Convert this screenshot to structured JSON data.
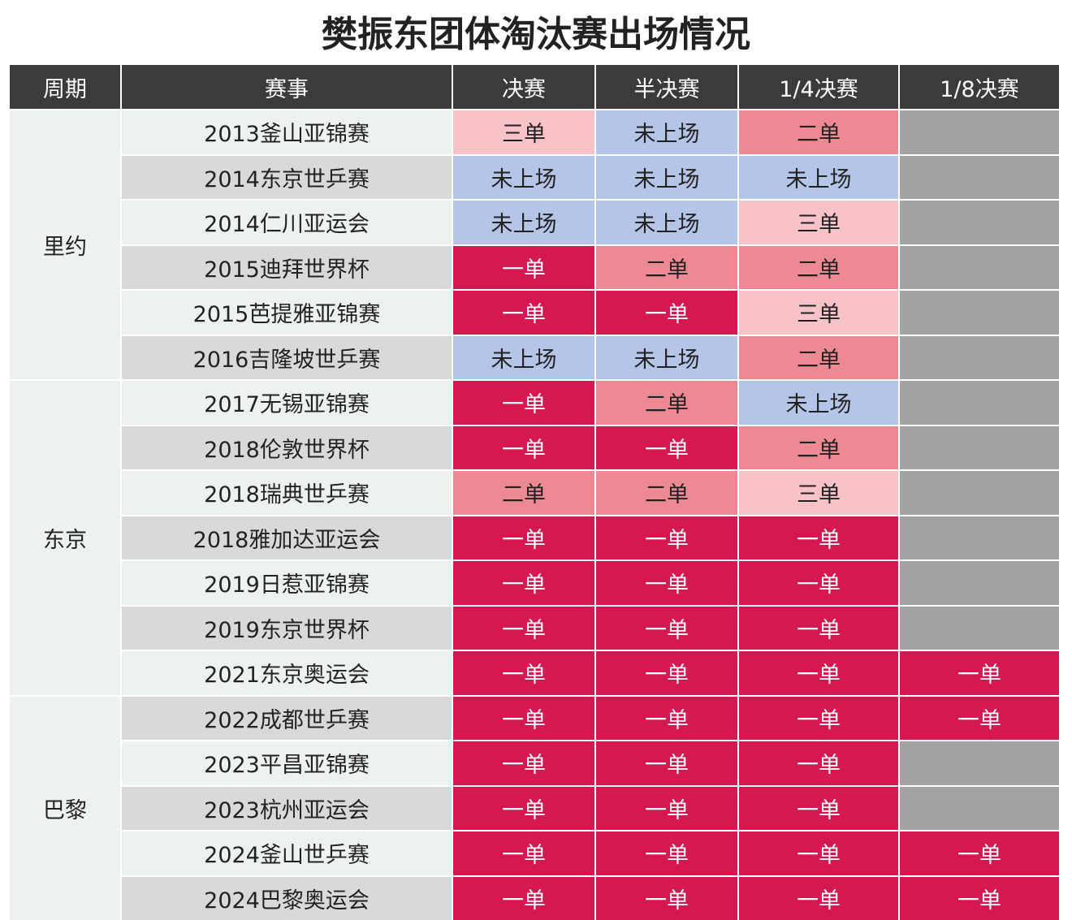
{
  "title": "樊振东团体淘汰赛出场情况",
  "header": {
    "columns": [
      "周期",
      "赛事",
      "决赛",
      "半决赛",
      "1/4决赛",
      "1/8决赛"
    ]
  },
  "rows": [
    {
      "period": "里约",
      "event": "2013釜山亚锦赛",
      "results": [
        "三单",
        "未上场",
        "二单",
        null
      ]
    },
    {
      "period": null,
      "event": "2014东京世乒赛",
      "results": [
        "未上场",
        "未上场",
        "未上场",
        null
      ]
    },
    {
      "period": null,
      "event": "2014仁川亚运会",
      "results": [
        "未上场",
        "未上场",
        "三单",
        null
      ]
    },
    {
      "period": null,
      "event": "2015迪拜世界杯",
      "results": [
        "一单",
        "二单",
        "二单",
        null
      ]
    },
    {
      "period": null,
      "event": "2015芭提雅亚锦赛",
      "results": [
        "一单",
        "一单",
        "三单",
        null
      ]
    },
    {
      "period": null,
      "event": "2016吉隆坡世乒赛",
      "results": [
        "未上场",
        "未上场",
        "二单",
        null
      ]
    },
    {
      "period": "东京",
      "event": "2017无锡亚锦赛",
      "results": [
        "一单",
        "二单",
        "未上场",
        null
      ]
    },
    {
      "period": null,
      "event": "2018伦敦世界杯",
      "results": [
        "一单",
        "一单",
        "二单",
        null
      ]
    },
    {
      "period": null,
      "event": "2018瑞典世乒赛",
      "results": [
        "二单",
        "二单",
        "三单",
        null
      ]
    },
    {
      "period": null,
      "event": "2018雅加达亚运会",
      "results": [
        "一单",
        "一单",
        "一单",
        null
      ]
    },
    {
      "period": null,
      "event": "2019日惹亚锦赛",
      "results": [
        "一单",
        "一单",
        "一单",
        null
      ]
    },
    {
      "period": null,
      "event": "2019东京世界杯",
      "results": [
        "一单",
        "一单",
        "一单",
        null
      ]
    },
    {
      "period": null,
      "event": "2021东京奥运会",
      "results": [
        "一单",
        "一单",
        "一单",
        "一单"
      ]
    },
    {
      "period": "巴黎",
      "event": "2022成都世乒赛",
      "results": [
        "一单",
        "一单",
        "一单",
        "一单"
      ]
    },
    {
      "period": null,
      "event": "2023平昌亚锦赛",
      "results": [
        "一单",
        "一单",
        "一单",
        null
      ]
    },
    {
      "period": null,
      "event": "2023杭州亚运会",
      "results": [
        "一单",
        "一单",
        "一单",
        null
      ]
    },
    {
      "period": null,
      "event": "2024釜山世乒赛",
      "results": [
        "一单",
        "一单",
        "一单",
        "一单"
      ]
    },
    {
      "period": null,
      "event": "2024巴黎奥运会",
      "results": [
        "一单",
        "一单",
        "一单",
        "一单"
      ]
    }
  ],
  "cell_styles": {
    "一单": {
      "bg": "#d5184f",
      "fg": "#ffffff"
    },
    "二单": {
      "bg": "#ec8993",
      "fg": "#222222"
    },
    "三单": {
      "bg": "#f7c3c9",
      "fg": "#222222"
    },
    "未上场": {
      "bg": "#b5c5e7",
      "fg": "#222222"
    }
  },
  "empty_color": "#a3a3a3"
}
